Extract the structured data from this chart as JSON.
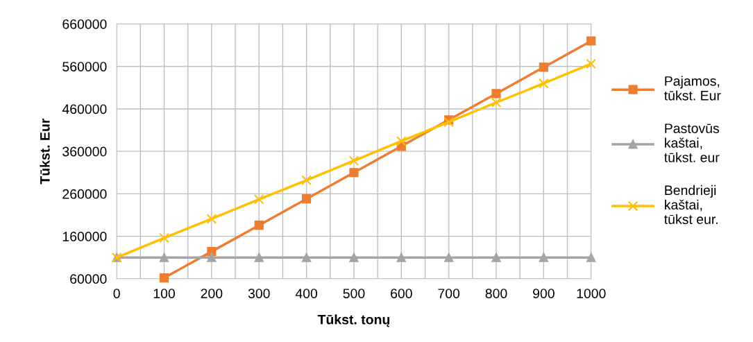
{
  "chart_data": {
    "type": "line",
    "xlabel": "Tūkst. tonų",
    "ylabel": "Tūkst. Eur",
    "x": [
      0,
      100,
      200,
      300,
      400,
      500,
      600,
      700,
      800,
      900,
      1000
    ],
    "series": [
      {
        "name": "Pajamos, tūkst. Eur",
        "color": "#ed7d31",
        "marker": "square",
        "values": [
          null,
          62000,
          124000,
          186000,
          248000,
          310000,
          372000,
          434000,
          496000,
          558000,
          620000
        ]
      },
      {
        "name": "Pastovūs kaštai, tūkst. eur",
        "color": "#a5a5a5",
        "marker": "triangle",
        "values": [
          110000,
          110000,
          110000,
          110000,
          110000,
          110000,
          110000,
          110000,
          110000,
          110000,
          110000
        ]
      },
      {
        "name": "Bendrieji kaštai, tūkst eur.",
        "color": "#ffc000",
        "marker": "cross",
        "values": [
          110000,
          156000,
          201000,
          247000,
          292000,
          338000,
          384000,
          429000,
          475000,
          520000,
          566000
        ]
      }
    ],
    "xlim": [
      0,
      1000
    ],
    "xticks": [
      0,
      {
        "value": 50,
        "label": null
      },
      100,
      {
        "value": 150,
        "label": null
      },
      200,
      {
        "value": 250,
        "label": null
      },
      300,
      {
        "value": 350,
        "label": null
      },
      400,
      {
        "value": 450,
        "label": null
      },
      500,
      {
        "value": 550,
        "label": null
      },
      600,
      {
        "value": 650,
        "label": null
      },
      700,
      {
        "value": 750,
        "label": null
      },
      800,
      {
        "value": 850,
        "label": null
      },
      900,
      {
        "value": 950,
        "label": null
      },
      1000
    ],
    "ylim": [
      60000,
      660000
    ],
    "yticks": [
      60000,
      160000,
      260000,
      360000,
      460000,
      560000,
      660000
    ],
    "grid": true,
    "legend": "right",
    "line_style": "solid"
  }
}
